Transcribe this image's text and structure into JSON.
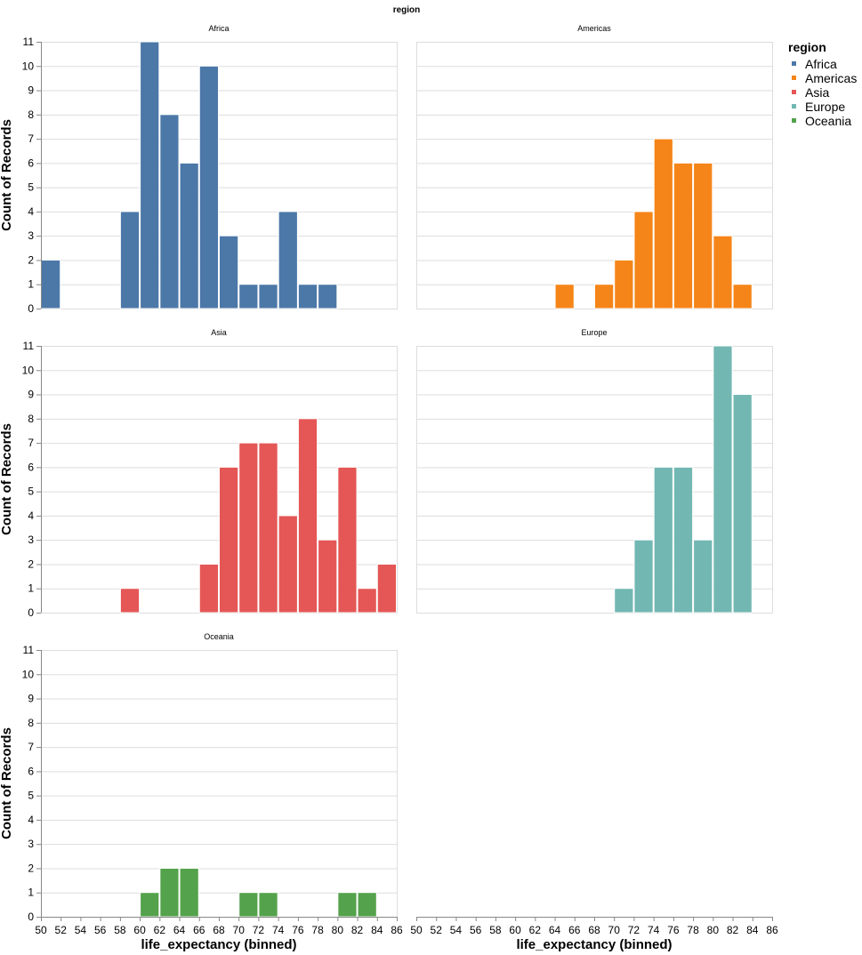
{
  "chart_data": {
    "type": "bar",
    "title": "region",
    "xlabel": "life_expectancy (binned)",
    "ylabel": "Count of Records",
    "xlim": [
      50,
      86
    ],
    "ylim": [
      0,
      11
    ],
    "bin_step": 2,
    "x_ticks": [
      "50",
      "52",
      "54",
      "56",
      "58",
      "60",
      "62",
      "64",
      "66",
      "68",
      "70",
      "72",
      "74",
      "76",
      "78",
      "80",
      "82",
      "84",
      "86"
    ],
    "y_ticks": [
      "0",
      "1",
      "2",
      "3",
      "4",
      "5",
      "6",
      "7",
      "8",
      "9",
      "10",
      "11"
    ],
    "legend": {
      "title": "region",
      "items": [
        {
          "label": "Africa",
          "color": "#4c78a8"
        },
        {
          "label": "Americas",
          "color": "#f58518"
        },
        {
          "label": "Asia",
          "color": "#e45756"
        },
        {
          "label": "Europe",
          "color": "#72b7b2"
        },
        {
          "label": "Oceania",
          "color": "#54a24b"
        }
      ]
    },
    "facets": [
      {
        "name": "Africa",
        "color": "#4c78a8",
        "bins": [
          {
            "x0": 50,
            "count": 2
          },
          {
            "x0": 58,
            "count": 4
          },
          {
            "x0": 60,
            "count": 11
          },
          {
            "x0": 62,
            "count": 8
          },
          {
            "x0": 64,
            "count": 6
          },
          {
            "x0": 66,
            "count": 10
          },
          {
            "x0": 68,
            "count": 3
          },
          {
            "x0": 70,
            "count": 1
          },
          {
            "x0": 72,
            "count": 1
          },
          {
            "x0": 74,
            "count": 4
          },
          {
            "x0": 76,
            "count": 1
          },
          {
            "x0": 78,
            "count": 1
          }
        ]
      },
      {
        "name": "Americas",
        "color": "#f58518",
        "bins": [
          {
            "x0": 64,
            "count": 1
          },
          {
            "x0": 68,
            "count": 1
          },
          {
            "x0": 70,
            "count": 2
          },
          {
            "x0": 72,
            "count": 4
          },
          {
            "x0": 74,
            "count": 7
          },
          {
            "x0": 76,
            "count": 6
          },
          {
            "x0": 78,
            "count": 6
          },
          {
            "x0": 80,
            "count": 3
          },
          {
            "x0": 82,
            "count": 1
          }
        ]
      },
      {
        "name": "Asia",
        "color": "#e45756",
        "bins": [
          {
            "x0": 58,
            "count": 1
          },
          {
            "x0": 66,
            "count": 2
          },
          {
            "x0": 68,
            "count": 6
          },
          {
            "x0": 70,
            "count": 7
          },
          {
            "x0": 72,
            "count": 7
          },
          {
            "x0": 74,
            "count": 4
          },
          {
            "x0": 76,
            "count": 8
          },
          {
            "x0": 78,
            "count": 3
          },
          {
            "x0": 80,
            "count": 6
          },
          {
            "x0": 82,
            "count": 1
          },
          {
            "x0": 84,
            "count": 2
          }
        ]
      },
      {
        "name": "Europe",
        "color": "#72b7b2",
        "bins": [
          {
            "x0": 70,
            "count": 1
          },
          {
            "x0": 72,
            "count": 3
          },
          {
            "x0": 74,
            "count": 6
          },
          {
            "x0": 76,
            "count": 6
          },
          {
            "x0": 78,
            "count": 3
          },
          {
            "x0": 80,
            "count": 11
          },
          {
            "x0": 82,
            "count": 9
          }
        ]
      },
      {
        "name": "Oceania",
        "color": "#54a24b",
        "bins": [
          {
            "x0": 60,
            "count": 1
          },
          {
            "x0": 62,
            "count": 2
          },
          {
            "x0": 64,
            "count": 2
          },
          {
            "x0": 70,
            "count": 1
          },
          {
            "x0": 72,
            "count": 1
          },
          {
            "x0": 80,
            "count": 1
          },
          {
            "x0": 82,
            "count": 1
          }
        ]
      }
    ]
  }
}
